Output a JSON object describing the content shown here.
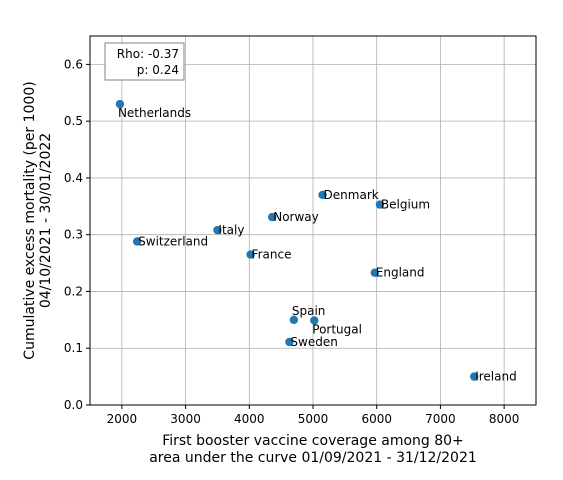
{
  "chart_data": {
    "type": "scatter",
    "xlabel": [
      "First booster vaccine coverage among 80+",
      "area under the curve 01/09/2021 - 31/12/2021"
    ],
    "ylabel": [
      "Cumulative excess mortality (per 1000)",
      "04/10/2021 - 30/01/2022"
    ],
    "xlim": [
      1500,
      8500
    ],
    "ylim": [
      0.0,
      0.65
    ],
    "xticks": [
      2000,
      3000,
      4000,
      5000,
      6000,
      7000,
      8000
    ],
    "yticks": [
      0.0,
      0.1,
      0.2,
      0.3,
      0.4,
      0.5,
      0.6
    ],
    "grid": true,
    "point_color": "#1f77b4",
    "stats": {
      "rho": "Rho: -0.37",
      "p": "p: 0.24",
      "placement": "top-left"
    },
    "points": [
      {
        "label": "Netherlands",
        "x": 1970,
        "y": 0.53,
        "label_anchor": "below-right"
      },
      {
        "label": "Switzerland",
        "x": 2240,
        "y": 0.288,
        "label_anchor": "right"
      },
      {
        "label": "Italy",
        "x": 3500,
        "y": 0.308,
        "label_anchor": "right"
      },
      {
        "label": "France",
        "x": 4020,
        "y": 0.265,
        "label_anchor": "right"
      },
      {
        "label": "Norway",
        "x": 4360,
        "y": 0.331,
        "label_anchor": "right"
      },
      {
        "label": "Denmark",
        "x": 5150,
        "y": 0.37,
        "label_anchor": "right"
      },
      {
        "label": "Belgium",
        "x": 6050,
        "y": 0.353,
        "label_anchor": "right"
      },
      {
        "label": "England",
        "x": 5970,
        "y": 0.233,
        "label_anchor": "right"
      },
      {
        "label": "Spain",
        "x": 4700,
        "y": 0.15,
        "label_anchor": "above-right"
      },
      {
        "label": "Portugal",
        "x": 5020,
        "y": 0.149,
        "label_anchor": "below-right"
      },
      {
        "label": "Sweden",
        "x": 4630,
        "y": 0.111,
        "label_anchor": "right"
      },
      {
        "label": "Ireland",
        "x": 7530,
        "y": 0.05,
        "label_anchor": "right"
      }
    ]
  }
}
